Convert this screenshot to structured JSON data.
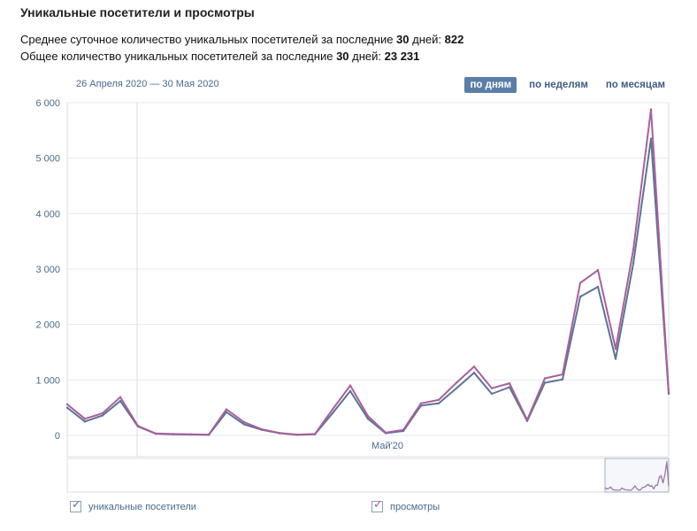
{
  "header": {
    "title": "Уникальные посетители и просмотры",
    "stat1_prefix": "Среднее суточное количество уникальных посетителей за последние ",
    "stat1_days": "30",
    "stat1_mid": " дней: ",
    "stat1_value": "822",
    "stat2_prefix": "Общее количество уникальных посетителей за последние ",
    "stat2_days": "30",
    "stat2_mid": " дней: ",
    "stat2_value": "23 231"
  },
  "controls": {
    "date_range": "26 Апреля 2020 — 30 Мая 2020",
    "period_buttons": [
      "по дням",
      "по неделям",
      "по месяцам"
    ],
    "active_period": "по дням"
  },
  "legend": {
    "visitors": "уникальные посетители",
    "views": "просмотры"
  },
  "colors": {
    "visitors": "#5b7494",
    "views": "#a8609c",
    "grid": "#e4e8ee",
    "axis_text": "#4a6a8c",
    "active_button": "#5b7ea8"
  },
  "chart_data": {
    "type": "line",
    "x": [
      1,
      2,
      3,
      4,
      5,
      6,
      7,
      8,
      9,
      10,
      11,
      12,
      13,
      14,
      15,
      16,
      17,
      18,
      19,
      20,
      21,
      22,
      23,
      24,
      25,
      26,
      27,
      28,
      29,
      30,
      31,
      32,
      33,
      34,
      35
    ],
    "series": [
      {
        "name": "уникальные посетители",
        "values": [
          500,
          250,
          360,
          620,
          160,
          30,
          20,
          15,
          10,
          420,
          200,
          100,
          40,
          10,
          20,
          400,
          800,
          300,
          40,
          80,
          540,
          580,
          850,
          1130,
          750,
          870,
          260,
          950,
          1010,
          2500,
          2680,
          1380,
          3100,
          5350,
          750
        ]
      },
      {
        "name": "просмотры",
        "values": [
          560,
          300,
          400,
          690,
          170,
          35,
          25,
          20,
          15,
          470,
          240,
          110,
          45,
          15,
          25,
          470,
          900,
          350,
          50,
          100,
          580,
          640,
          950,
          1240,
          850,
          940,
          280,
          1030,
          1100,
          2750,
          2980,
          1560,
          3350,
          5880,
          770
        ]
      }
    ],
    "ylim": [
      0,
      6000
    ],
    "yticks": [
      "6 000",
      "5 000",
      "4 000",
      "3 000",
      "2 000",
      "1 000",
      "0"
    ],
    "xtick_label": "Май'20",
    "grid": true
  }
}
